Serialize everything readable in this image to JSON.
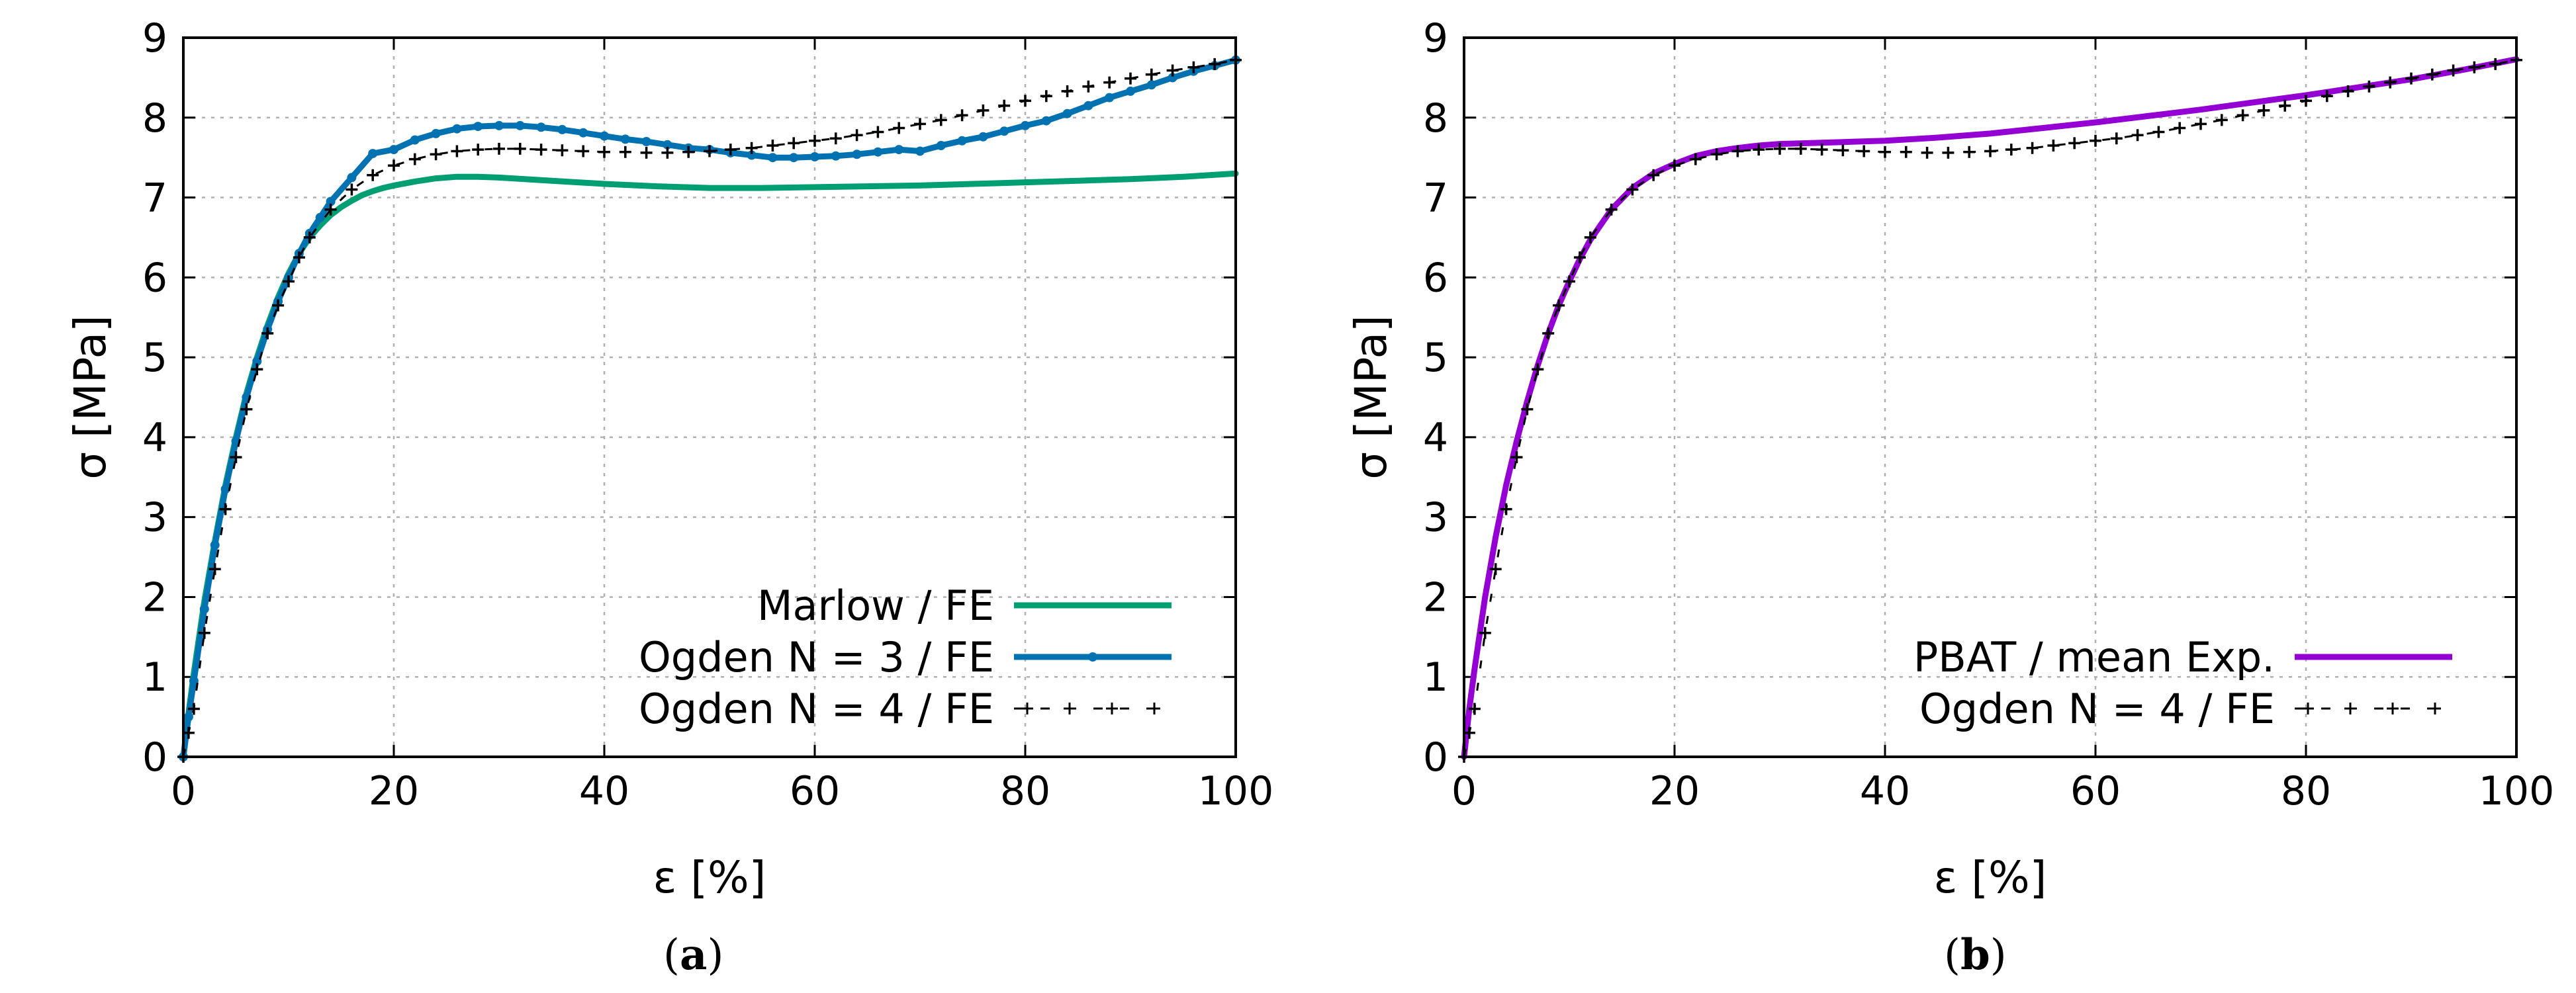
{
  "chart_data": [
    {
      "type": "line",
      "panel_label": "a",
      "xlabel": "ε [%]",
      "ylabel": "σ [MPa]",
      "xlim": [
        0,
        100
      ],
      "ylim": [
        0,
        9
      ],
      "xticks": [
        0,
        20,
        40,
        60,
        80,
        100
      ],
      "yticks": [
        0,
        1,
        2,
        3,
        4,
        5,
        6,
        7,
        8,
        9
      ],
      "grid": true,
      "legend_position": "bottom-right",
      "series": [
        {
          "name": "Marlow / FE",
          "color": "#009e73",
          "style": "solid",
          "x": [
            0,
            0.5,
            1,
            2,
            3,
            4,
            5,
            6,
            7,
            8,
            9,
            10,
            11,
            12,
            13,
            14,
            15,
            16,
            17,
            18,
            19,
            20,
            22,
            24,
            26,
            28,
            30,
            35,
            40,
            45,
            50,
            55,
            60,
            65,
            70,
            75,
            80,
            85,
            90,
            95,
            100
          ],
          "y": [
            0,
            0.55,
            1.05,
            1.95,
            2.7,
            3.4,
            4.0,
            4.55,
            5.0,
            5.4,
            5.75,
            6.05,
            6.3,
            6.5,
            6.65,
            6.78,
            6.88,
            6.96,
            7.03,
            7.08,
            7.12,
            7.15,
            7.2,
            7.24,
            7.26,
            7.26,
            7.25,
            7.21,
            7.17,
            7.14,
            7.12,
            7.12,
            7.13,
            7.14,
            7.15,
            7.17,
            7.19,
            7.21,
            7.23,
            7.26,
            7.3
          ]
        },
        {
          "name": "Ogden N = 3 / FE",
          "color": "#0072b2",
          "style": "solid-points",
          "x": [
            0,
            0.5,
            1,
            2,
            3,
            4,
            5,
            6,
            7,
            8,
            9,
            10,
            11,
            12,
            13,
            14,
            16,
            18,
            20,
            22,
            24,
            26,
            28,
            30,
            32,
            34,
            36,
            38,
            40,
            42,
            44,
            46,
            48,
            50,
            52,
            54,
            56,
            58,
            60,
            62,
            64,
            66,
            68,
            70,
            72,
            74,
            76,
            78,
            80,
            82,
            84,
            86,
            88,
            90,
            92,
            94,
            96,
            98,
            100
          ],
          "y": [
            0,
            0.5,
            0.95,
            1.85,
            2.65,
            3.35,
            3.95,
            4.5,
            4.95,
            5.35,
            5.7,
            6.0,
            6.3,
            6.55,
            6.75,
            6.95,
            7.25,
            7.55,
            7.6,
            7.72,
            7.8,
            7.86,
            7.89,
            7.9,
            7.9,
            7.88,
            7.85,
            7.81,
            7.77,
            7.73,
            7.7,
            7.66,
            7.62,
            7.6,
            7.56,
            7.53,
            7.5,
            7.5,
            7.51,
            7.52,
            7.54,
            7.57,
            7.6,
            7.58,
            7.65,
            7.71,
            7.76,
            7.83,
            7.9,
            7.96,
            8.05,
            8.15,
            8.25,
            8.33,
            8.41,
            8.5,
            8.58,
            8.65,
            8.72
          ]
        },
        {
          "name": "Ogden N = 4 / FE",
          "color": "#000000",
          "style": "dashed-plus",
          "x": [
            0,
            0.5,
            1,
            2,
            3,
            4,
            5,
            6,
            7,
            8,
            9,
            10,
            11,
            12,
            14,
            16,
            18,
            20,
            22,
            24,
            26,
            28,
            30,
            32,
            34,
            36,
            38,
            40,
            42,
            44,
            46,
            48,
            50,
            52,
            54,
            56,
            58,
            60,
            62,
            64,
            66,
            68,
            70,
            72,
            74,
            76,
            78,
            80,
            82,
            84,
            86,
            88,
            90,
            92,
            94,
            96,
            98,
            100
          ],
          "y": [
            0,
            0.3,
            0.6,
            1.55,
            2.35,
            3.1,
            3.75,
            4.35,
            4.85,
            5.3,
            5.65,
            5.95,
            6.25,
            6.5,
            6.85,
            7.1,
            7.28,
            7.4,
            7.48,
            7.54,
            7.58,
            7.6,
            7.61,
            7.61,
            7.6,
            7.59,
            7.58,
            7.57,
            7.57,
            7.56,
            7.56,
            7.57,
            7.58,
            7.6,
            7.62,
            7.65,
            7.68,
            7.71,
            7.74,
            7.78,
            7.82,
            7.87,
            7.92,
            7.97,
            8.03,
            8.09,
            8.15,
            8.21,
            8.27,
            8.33,
            8.39,
            8.44,
            8.49,
            8.54,
            8.59,
            8.63,
            8.67,
            8.72
          ]
        }
      ]
    },
    {
      "type": "line",
      "panel_label": "b",
      "xlabel": "ε [%]",
      "ylabel": "σ [MPa]",
      "xlim": [
        0,
        100
      ],
      "ylim": [
        0,
        9
      ],
      "xticks": [
        0,
        20,
        40,
        60,
        80,
        100
      ],
      "yticks": [
        0,
        1,
        2,
        3,
        4,
        5,
        6,
        7,
        8,
        9
      ],
      "grid": true,
      "legend_position": "bottom-right",
      "series": [
        {
          "name": "PBAT / mean Exp.",
          "color": "#9400d3",
          "style": "solid",
          "x": [
            0,
            0.5,
            1,
            2,
            3,
            4,
            5,
            6,
            7,
            8,
            9,
            10,
            11,
            12,
            14,
            16,
            18,
            20,
            22,
            24,
            26,
            28,
            30,
            35,
            40,
            45,
            50,
            55,
            60,
            65,
            70,
            75,
            80,
            85,
            90,
            95,
            100
          ],
          "y": [
            0,
            0.6,
            1.1,
            2.0,
            2.75,
            3.4,
            3.95,
            4.45,
            4.9,
            5.3,
            5.65,
            5.95,
            6.23,
            6.47,
            6.85,
            7.12,
            7.3,
            7.42,
            7.52,
            7.58,
            7.62,
            7.65,
            7.67,
            7.69,
            7.71,
            7.75,
            7.8,
            7.87,
            7.94,
            8.02,
            8.1,
            8.19,
            8.28,
            8.38,
            8.48,
            8.6,
            8.73
          ]
        },
        {
          "name": "Ogden N = 4 / FE",
          "color": "#000000",
          "style": "dashed-plus",
          "x": [
            0,
            0.5,
            1,
            2,
            3,
            4,
            5,
            6,
            7,
            8,
            9,
            10,
            11,
            12,
            14,
            16,
            18,
            20,
            22,
            24,
            26,
            28,
            30,
            32,
            34,
            36,
            38,
            40,
            42,
            44,
            46,
            48,
            50,
            52,
            54,
            56,
            58,
            60,
            62,
            64,
            66,
            68,
            70,
            72,
            74,
            76,
            78,
            80,
            82,
            84,
            86,
            88,
            90,
            92,
            94,
            96,
            98,
            100
          ],
          "y": [
            0,
            0.3,
            0.6,
            1.55,
            2.35,
            3.1,
            3.75,
            4.35,
            4.85,
            5.3,
            5.65,
            5.95,
            6.25,
            6.5,
            6.85,
            7.1,
            7.28,
            7.4,
            7.48,
            7.54,
            7.58,
            7.6,
            7.61,
            7.61,
            7.6,
            7.59,
            7.58,
            7.57,
            7.57,
            7.56,
            7.56,
            7.57,
            7.58,
            7.6,
            7.62,
            7.65,
            7.68,
            7.71,
            7.74,
            7.78,
            7.82,
            7.87,
            7.92,
            7.97,
            8.03,
            8.09,
            8.15,
            8.21,
            8.27,
            8.33,
            8.39,
            8.44,
            8.49,
            8.54,
            8.59,
            8.63,
            8.67,
            8.72
          ]
        }
      ]
    }
  ]
}
